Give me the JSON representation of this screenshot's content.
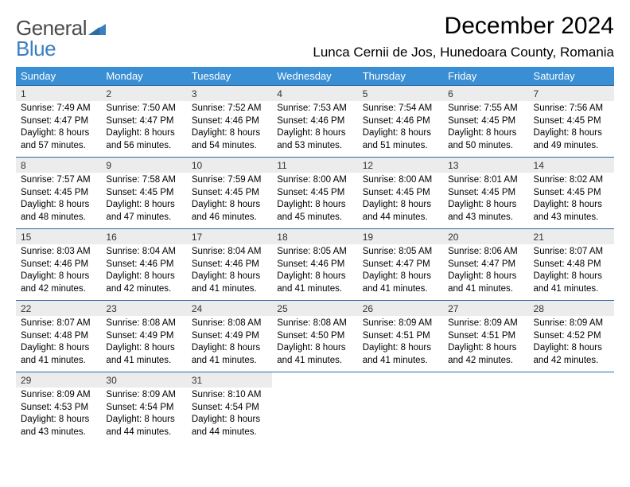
{
  "brand": {
    "part1": "General",
    "part2": "Blue"
  },
  "title": "December 2024",
  "location": "Lunca Cernii de Jos, Hunedoara County, Romania",
  "colors": {
    "header_bg": "#3a8fd4",
    "header_text": "#ffffff",
    "daynum_bg": "#ececec",
    "rule": "#2f6aa0",
    "logo_gray": "#4a4a4a",
    "logo_blue": "#3a7fbf"
  },
  "day_headers": [
    "Sunday",
    "Monday",
    "Tuesday",
    "Wednesday",
    "Thursday",
    "Friday",
    "Saturday"
  ],
  "weeks": [
    [
      {
        "n": "1",
        "sr": "Sunrise: 7:49 AM",
        "ss": "Sunset: 4:47 PM",
        "dl": "Daylight: 8 hours and 57 minutes."
      },
      {
        "n": "2",
        "sr": "Sunrise: 7:50 AM",
        "ss": "Sunset: 4:47 PM",
        "dl": "Daylight: 8 hours and 56 minutes."
      },
      {
        "n": "3",
        "sr": "Sunrise: 7:52 AM",
        "ss": "Sunset: 4:46 PM",
        "dl": "Daylight: 8 hours and 54 minutes."
      },
      {
        "n": "4",
        "sr": "Sunrise: 7:53 AM",
        "ss": "Sunset: 4:46 PM",
        "dl": "Daylight: 8 hours and 53 minutes."
      },
      {
        "n": "5",
        "sr": "Sunrise: 7:54 AM",
        "ss": "Sunset: 4:46 PM",
        "dl": "Daylight: 8 hours and 51 minutes."
      },
      {
        "n": "6",
        "sr": "Sunrise: 7:55 AM",
        "ss": "Sunset: 4:45 PM",
        "dl": "Daylight: 8 hours and 50 minutes."
      },
      {
        "n": "7",
        "sr": "Sunrise: 7:56 AM",
        "ss": "Sunset: 4:45 PM",
        "dl": "Daylight: 8 hours and 49 minutes."
      }
    ],
    [
      {
        "n": "8",
        "sr": "Sunrise: 7:57 AM",
        "ss": "Sunset: 4:45 PM",
        "dl": "Daylight: 8 hours and 48 minutes."
      },
      {
        "n": "9",
        "sr": "Sunrise: 7:58 AM",
        "ss": "Sunset: 4:45 PM",
        "dl": "Daylight: 8 hours and 47 minutes."
      },
      {
        "n": "10",
        "sr": "Sunrise: 7:59 AM",
        "ss": "Sunset: 4:45 PM",
        "dl": "Daylight: 8 hours and 46 minutes."
      },
      {
        "n": "11",
        "sr": "Sunrise: 8:00 AM",
        "ss": "Sunset: 4:45 PM",
        "dl": "Daylight: 8 hours and 45 minutes."
      },
      {
        "n": "12",
        "sr": "Sunrise: 8:00 AM",
        "ss": "Sunset: 4:45 PM",
        "dl": "Daylight: 8 hours and 44 minutes."
      },
      {
        "n": "13",
        "sr": "Sunrise: 8:01 AM",
        "ss": "Sunset: 4:45 PM",
        "dl": "Daylight: 8 hours and 43 minutes."
      },
      {
        "n": "14",
        "sr": "Sunrise: 8:02 AM",
        "ss": "Sunset: 4:45 PM",
        "dl": "Daylight: 8 hours and 43 minutes."
      }
    ],
    [
      {
        "n": "15",
        "sr": "Sunrise: 8:03 AM",
        "ss": "Sunset: 4:46 PM",
        "dl": "Daylight: 8 hours and 42 minutes."
      },
      {
        "n": "16",
        "sr": "Sunrise: 8:04 AM",
        "ss": "Sunset: 4:46 PM",
        "dl": "Daylight: 8 hours and 42 minutes."
      },
      {
        "n": "17",
        "sr": "Sunrise: 8:04 AM",
        "ss": "Sunset: 4:46 PM",
        "dl": "Daylight: 8 hours and 41 minutes."
      },
      {
        "n": "18",
        "sr": "Sunrise: 8:05 AM",
        "ss": "Sunset: 4:46 PM",
        "dl": "Daylight: 8 hours and 41 minutes."
      },
      {
        "n": "19",
        "sr": "Sunrise: 8:05 AM",
        "ss": "Sunset: 4:47 PM",
        "dl": "Daylight: 8 hours and 41 minutes."
      },
      {
        "n": "20",
        "sr": "Sunrise: 8:06 AM",
        "ss": "Sunset: 4:47 PM",
        "dl": "Daylight: 8 hours and 41 minutes."
      },
      {
        "n": "21",
        "sr": "Sunrise: 8:07 AM",
        "ss": "Sunset: 4:48 PM",
        "dl": "Daylight: 8 hours and 41 minutes."
      }
    ],
    [
      {
        "n": "22",
        "sr": "Sunrise: 8:07 AM",
        "ss": "Sunset: 4:48 PM",
        "dl": "Daylight: 8 hours and 41 minutes."
      },
      {
        "n": "23",
        "sr": "Sunrise: 8:08 AM",
        "ss": "Sunset: 4:49 PM",
        "dl": "Daylight: 8 hours and 41 minutes."
      },
      {
        "n": "24",
        "sr": "Sunrise: 8:08 AM",
        "ss": "Sunset: 4:49 PM",
        "dl": "Daylight: 8 hours and 41 minutes."
      },
      {
        "n": "25",
        "sr": "Sunrise: 8:08 AM",
        "ss": "Sunset: 4:50 PM",
        "dl": "Daylight: 8 hours and 41 minutes."
      },
      {
        "n": "26",
        "sr": "Sunrise: 8:09 AM",
        "ss": "Sunset: 4:51 PM",
        "dl": "Daylight: 8 hours and 41 minutes."
      },
      {
        "n": "27",
        "sr": "Sunrise: 8:09 AM",
        "ss": "Sunset: 4:51 PM",
        "dl": "Daylight: 8 hours and 42 minutes."
      },
      {
        "n": "28",
        "sr": "Sunrise: 8:09 AM",
        "ss": "Sunset: 4:52 PM",
        "dl": "Daylight: 8 hours and 42 minutes."
      }
    ],
    [
      {
        "n": "29",
        "sr": "Sunrise: 8:09 AM",
        "ss": "Sunset: 4:53 PM",
        "dl": "Daylight: 8 hours and 43 minutes."
      },
      {
        "n": "30",
        "sr": "Sunrise: 8:09 AM",
        "ss": "Sunset: 4:54 PM",
        "dl": "Daylight: 8 hours and 44 minutes."
      },
      {
        "n": "31",
        "sr": "Sunrise: 8:10 AM",
        "ss": "Sunset: 4:54 PM",
        "dl": "Daylight: 8 hours and 44 minutes."
      },
      null,
      null,
      null,
      null
    ]
  ]
}
